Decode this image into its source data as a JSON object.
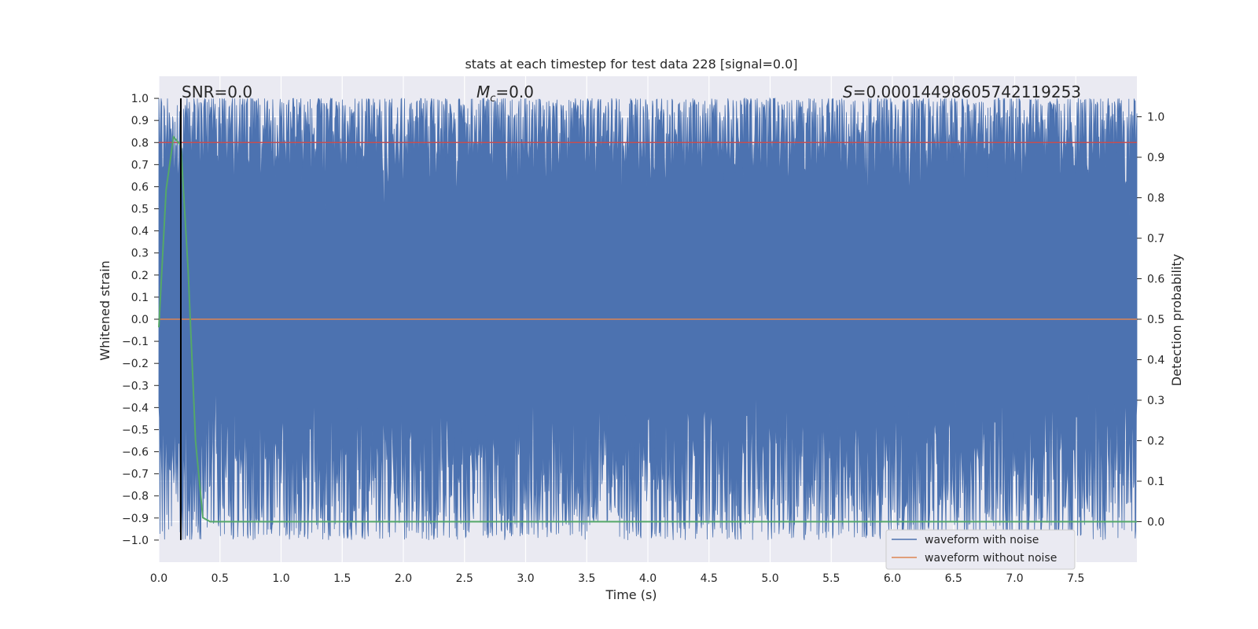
{
  "chart_data": {
    "type": "line",
    "title": "stats at each timestep for test data 228 [signal=0.0]",
    "xlabel": "Time (s)",
    "ylabel": "Whitened strain",
    "ylabel_right": "Detection probability",
    "xlim": [
      0.0,
      8.0
    ],
    "ylim": [
      -1.1,
      1.1
    ],
    "ylim_right": [
      -0.1,
      1.1
    ],
    "x_ticks": [
      "0.0",
      "0.5",
      "1.0",
      "1.5",
      "2.0",
      "2.5",
      "3.0",
      "3.5",
      "4.0",
      "4.5",
      "5.0",
      "5.5",
      "6.0",
      "6.5",
      "7.0",
      "7.5"
    ],
    "y_ticks": [
      "1.0",
      "0.9",
      "0.8",
      "0.7",
      "0.6",
      "0.5",
      "0.4",
      "0.3",
      "0.2",
      "0.1",
      "0.0",
      "−0.1",
      "−0.2",
      "−0.3",
      "−0.4",
      "−0.5",
      "−0.6",
      "−0.7",
      "−0.8",
      "−0.9",
      "−1.0"
    ],
    "y_ticks_right": [
      "1.0",
      "0.9",
      "0.8",
      "0.7",
      "0.6",
      "0.5",
      "0.4",
      "0.3",
      "0.2",
      "0.1",
      "0.0"
    ],
    "grid": true,
    "legend_position": "lower-right",
    "series": [
      {
        "name": "waveform with noise",
        "color": "#4c72b0",
        "description_range": [
          -1.0,
          1.0
        ]
      },
      {
        "name": "waveform without noise",
        "color": "#dd8452",
        "x": [
          0.0,
          8.0
        ],
        "y": [
          0.0,
          0.0
        ]
      },
      {
        "axis": "right",
        "color": "#55a868",
        "x": [
          0.0,
          0.06,
          0.12,
          0.18,
          0.24,
          0.3,
          0.36,
          0.42,
          8.0
        ],
        "y": [
          0.48,
          0.82,
          0.95,
          0.93,
          0.62,
          0.2,
          0.01,
          0.0,
          0.0
        ]
      }
    ],
    "hlines": [
      {
        "y": 0.8,
        "color": "#c44e52"
      }
    ],
    "vlines": [
      {
        "x": 0.18,
        "color": "#000000"
      }
    ],
    "annotations": [
      {
        "text": "SNR=0.0",
        "position": "top-left"
      },
      {
        "text_math": "M",
        "text_sub": "c",
        "text_rest": "=0.0",
        "position": "top-center"
      },
      {
        "text_math": "S",
        "text_rest": "=0.00014498605742119253",
        "position": "top-right"
      }
    ]
  }
}
